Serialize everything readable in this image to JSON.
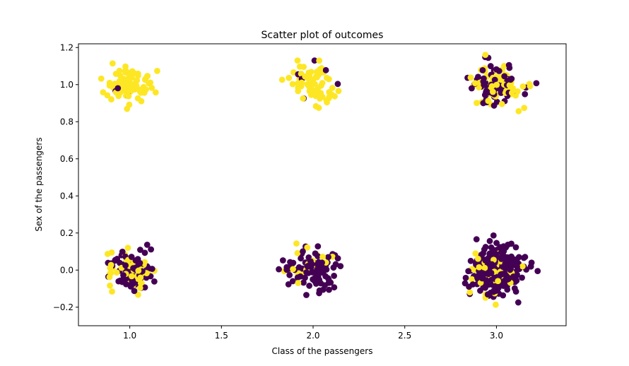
{
  "chart_data": {
    "type": "scatter",
    "title": "Scatter plot of outcomes",
    "xlabel": "Class of the passengers",
    "ylabel": "Sex of the passengers",
    "xlim": [
      0.72,
      3.38
    ],
    "ylim": [
      -0.3,
      1.22
    ],
    "x_ticks": [
      "1.0",
      "1.5",
      "2.0",
      "2.5",
      "3.0"
    ],
    "y_ticks": [
      "−0.2",
      "0.0",
      "0.2",
      "0.4",
      "0.6",
      "0.8",
      "1.0",
      "1.2"
    ],
    "grid": false,
    "colors": {
      "survived": "#fde725",
      "died": "#440154"
    },
    "clusters": [
      {
        "class": 1,
        "sex": 1,
        "survived": 90,
        "died": 3,
        "spread": [
          0.06,
          0.05
        ]
      },
      {
        "class": 2,
        "sex": 1,
        "survived": 68,
        "died": 6,
        "spread": [
          0.07,
          0.055
        ]
      },
      {
        "class": 3,
        "sex": 1,
        "survived": 68,
        "died": 72,
        "spread": [
          0.07,
          0.055
        ]
      },
      {
        "class": 1,
        "sex": 0,
        "survived": 45,
        "died": 77,
        "spread": [
          0.06,
          0.06
        ]
      },
      {
        "class": 2,
        "sex": 0,
        "survived": 17,
        "died": 91,
        "spread": [
          0.065,
          0.055
        ]
      },
      {
        "class": 3,
        "sex": 0,
        "survived": 47,
        "died": 300,
        "spread": [
          0.07,
          0.06
        ]
      }
    ]
  }
}
